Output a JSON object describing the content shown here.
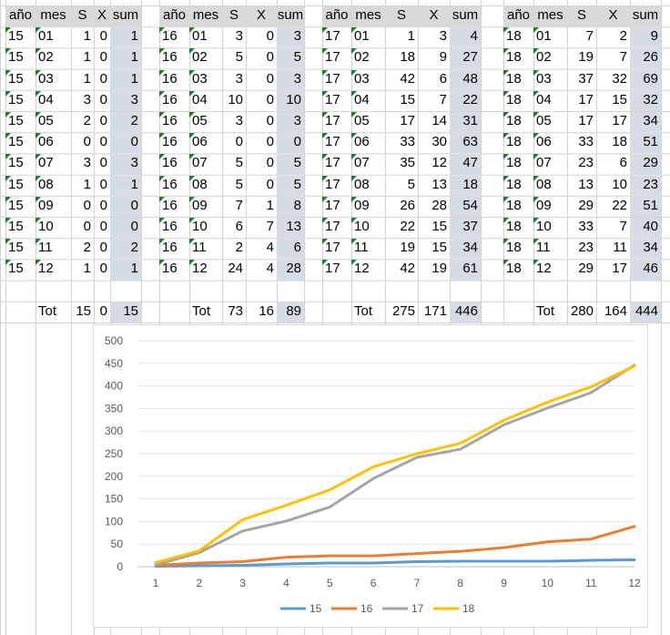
{
  "tables": [
    {
      "headers": [
        "año",
        "mes",
        "S",
        "X",
        "sum"
      ],
      "rows": [
        [
          "15",
          "01",
          "1",
          "0",
          "1"
        ],
        [
          "15",
          "02",
          "1",
          "0",
          "1"
        ],
        [
          "15",
          "03",
          "1",
          "0",
          "1"
        ],
        [
          "15",
          "04",
          "3",
          "0",
          "3"
        ],
        [
          "15",
          "05",
          "2",
          "0",
          "2"
        ],
        [
          "15",
          "06",
          "0",
          "0",
          "0"
        ],
        [
          "15",
          "07",
          "3",
          "0",
          "3"
        ],
        [
          "15",
          "08",
          "1",
          "0",
          "1"
        ],
        [
          "15",
          "09",
          "0",
          "0",
          "0"
        ],
        [
          "15",
          "10",
          "0",
          "0",
          "0"
        ],
        [
          "15",
          "11",
          "2",
          "0",
          "2"
        ],
        [
          "15",
          "12",
          "1",
          "0",
          "1"
        ]
      ],
      "total": {
        "label": "Tot",
        "s": "15",
        "x": "0",
        "sum": "15"
      }
    },
    {
      "headers": [
        "año",
        "mes",
        "S",
        "X",
        "sum"
      ],
      "rows": [
        [
          "16",
          "01",
          "3",
          "0",
          "3"
        ],
        [
          "16",
          "02",
          "5",
          "0",
          "5"
        ],
        [
          "16",
          "03",
          "3",
          "0",
          "3"
        ],
        [
          "16",
          "04",
          "10",
          "0",
          "10"
        ],
        [
          "16",
          "05",
          "3",
          "0",
          "3"
        ],
        [
          "16",
          "06",
          "0",
          "0",
          "0"
        ],
        [
          "16",
          "07",
          "5",
          "0",
          "5"
        ],
        [
          "16",
          "08",
          "5",
          "0",
          "5"
        ],
        [
          "16",
          "09",
          "7",
          "1",
          "8"
        ],
        [
          "16",
          "10",
          "6",
          "7",
          "13"
        ],
        [
          "16",
          "11",
          "2",
          "4",
          "6"
        ],
        [
          "16",
          "12",
          "24",
          "4",
          "28"
        ]
      ],
      "total": {
        "label": "Tot",
        "s": "73",
        "x": "16",
        "sum": "89"
      }
    },
    {
      "headers": [
        "año",
        "mes",
        "S",
        "X",
        "sum"
      ],
      "rows": [
        [
          "17",
          "01",
          "1",
          "3",
          "4"
        ],
        [
          "17",
          "02",
          "18",
          "9",
          "27"
        ],
        [
          "17",
          "03",
          "42",
          "6",
          "48"
        ],
        [
          "17",
          "04",
          "15",
          "7",
          "22"
        ],
        [
          "17",
          "05",
          "17",
          "14",
          "31"
        ],
        [
          "17",
          "06",
          "33",
          "30",
          "63"
        ],
        [
          "17",
          "07",
          "35",
          "12",
          "47"
        ],
        [
          "17",
          "08",
          "5",
          "13",
          "18"
        ],
        [
          "17",
          "09",
          "26",
          "28",
          "54"
        ],
        [
          "17",
          "10",
          "22",
          "15",
          "37"
        ],
        [
          "17",
          "11",
          "19",
          "15",
          "34"
        ],
        [
          "17",
          "12",
          "42",
          "19",
          "61"
        ]
      ],
      "total": {
        "label": "Tot",
        "s": "275",
        "x": "171",
        "sum": "446"
      }
    },
    {
      "headers": [
        "año",
        "mes",
        "S",
        "X",
        "sum"
      ],
      "rows": [
        [
          "18",
          "01",
          "7",
          "2",
          "9"
        ],
        [
          "18",
          "02",
          "19",
          "7",
          "26"
        ],
        [
          "18",
          "03",
          "37",
          "32",
          "69"
        ],
        [
          "18",
          "04",
          "17",
          "15",
          "32"
        ],
        [
          "18",
          "05",
          "17",
          "17",
          "34"
        ],
        [
          "18",
          "06",
          "33",
          "18",
          "51"
        ],
        [
          "18",
          "07",
          "23",
          "6",
          "29"
        ],
        [
          "18",
          "08",
          "13",
          "10",
          "23"
        ],
        [
          "18",
          "09",
          "29",
          "22",
          "51"
        ],
        [
          "18",
          "10",
          "33",
          "7",
          "40"
        ],
        [
          "18",
          "11",
          "23",
          "11",
          "34"
        ],
        [
          "18",
          "12",
          "29",
          "17",
          "46"
        ]
      ],
      "total": {
        "label": "Tot",
        "s": "280",
        "x": "164",
        "sum": "444"
      }
    }
  ],
  "chart_data": {
    "type": "line",
    "title": "",
    "xlabel": "",
    "ylabel": "",
    "x": [
      1,
      2,
      3,
      4,
      5,
      6,
      7,
      8,
      9,
      10,
      11,
      12
    ],
    "ylim": [
      0,
      500
    ],
    "yticks": [
      0,
      50,
      100,
      150,
      200,
      250,
      300,
      350,
      400,
      450,
      500
    ],
    "grid": true,
    "legend": "bottom",
    "series": [
      {
        "name": "15",
        "color": "#5b9bd5",
        "values": [
          1,
          2,
          3,
          6,
          8,
          8,
          11,
          12,
          12,
          12,
          14,
          15
        ]
      },
      {
        "name": "16",
        "color": "#ed7d31",
        "values": [
          3,
          8,
          11,
          21,
          24,
          24,
          29,
          34,
          42,
          55,
          61,
          89
        ]
      },
      {
        "name": "17",
        "color": "#a5a5a5",
        "values": [
          4,
          31,
          79,
          101,
          132,
          195,
          242,
          260,
          314,
          351,
          385,
          446
        ]
      },
      {
        "name": "18",
        "color": "#ffc000",
        "values": [
          9,
          35,
          104,
          136,
          170,
          221,
          250,
          273,
          324,
          364,
          398,
          444
        ]
      }
    ]
  }
}
